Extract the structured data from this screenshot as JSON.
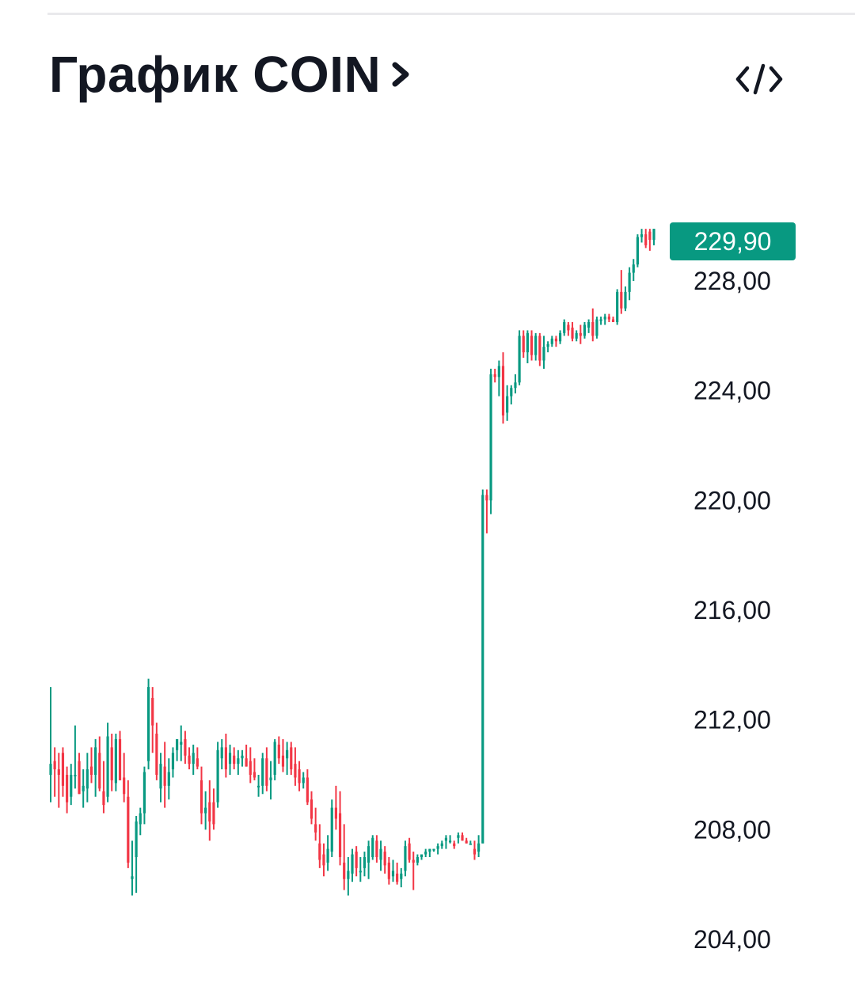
{
  "header": {
    "title": "График COIN",
    "chevron_icon": "chevron-right-icon",
    "embed_icon": "code-embed-icon"
  },
  "colors": {
    "up": "#089981",
    "down": "#f23645",
    "badge": "#089981",
    "divider": "#e9e9ec"
  },
  "chart_data": {
    "type": "candlestick",
    "title": "График COIN",
    "ylim": [
      204,
      234
    ],
    "y_ticks": [
      "228,00",
      "224,00",
      "220,00",
      "216,00",
      "212,00",
      "208,00",
      "204,00"
    ],
    "last_price_label": "229,90",
    "last_price": 229.9,
    "grid": false,
    "ohlc": [
      [
        210.0,
        213.2,
        209.0,
        210.4
      ],
      [
        210.5,
        211.0,
        209.2,
        210.2
      ],
      [
        210.2,
        210.8,
        208.8,
        210.0
      ],
      [
        210.8,
        211.0,
        209.2,
        209.6
      ],
      [
        210.0,
        210.3,
        208.6,
        209.0
      ],
      [
        209.2,
        210.4,
        208.9,
        210.0
      ],
      [
        210.0,
        211.8,
        209.5,
        210.0
      ],
      [
        210.5,
        210.8,
        209.3,
        209.3
      ],
      [
        209.4,
        210.2,
        208.8,
        209.6
      ],
      [
        209.5,
        210.8,
        209.0,
        210.2
      ],
      [
        210.3,
        211.0,
        209.7,
        210.0
      ],
      [
        210.0,
        211.3,
        209.2,
        211.0
      ],
      [
        210.8,
        211.4,
        209.4,
        209.5
      ],
      [
        209.4,
        210.5,
        208.6,
        208.9
      ],
      [
        209.2,
        211.9,
        209.0,
        211.4
      ],
      [
        211.0,
        211.5,
        209.4,
        209.8
      ],
      [
        209.7,
        211.5,
        209.4,
        211.3
      ],
      [
        211.3,
        211.6,
        209.8,
        209.8
      ],
      [
        209.9,
        210.8,
        209.0,
        209.3
      ],
      [
        209.2,
        209.8,
        206.6,
        206.8
      ],
      [
        206.2,
        207.6,
        205.6,
        206.3
      ],
      [
        207.0,
        208.5,
        205.7,
        208.3
      ],
      [
        208.2,
        208.8,
        207.8,
        208.6
      ],
      [
        208.6,
        210.3,
        208.2,
        210.1
      ],
      [
        210.5,
        213.5,
        210.2,
        213.2
      ],
      [
        212.8,
        213.2,
        210.8,
        211.8
      ],
      [
        211.5,
        211.9,
        209.8,
        210.0
      ],
      [
        209.5,
        210.8,
        209.0,
        210.4
      ],
      [
        210.3,
        211.2,
        208.8,
        209.6
      ],
      [
        209.6,
        210.6,
        209.1,
        210.1
      ],
      [
        210.2,
        211.0,
        209.9,
        210.8
      ],
      [
        210.9,
        211.3,
        210.5,
        211.3
      ],
      [
        211.1,
        211.8,
        210.5,
        211.2
      ],
      [
        211.3,
        211.6,
        210.4,
        210.7
      ],
      [
        210.7,
        211.0,
        210.2,
        210.4
      ],
      [
        210.4,
        211.1,
        210.0,
        210.8
      ],
      [
        210.6,
        211.0,
        210.2,
        210.3
      ],
      [
        209.8,
        210.3,
        208.2,
        208.6
      ],
      [
        208.6,
        209.4,
        208.0,
        208.8
      ],
      [
        209.0,
        209.8,
        207.6,
        208.3
      ],
      [
        209.0,
        209.5,
        208.0,
        208.2
      ],
      [
        209.0,
        211.2,
        208.8,
        210.9
      ],
      [
        210.6,
        211.3,
        210.2,
        211.0
      ],
      [
        211.0,
        211.5,
        209.9,
        210.2
      ],
      [
        210.4,
        211.1,
        210.0,
        210.8
      ],
      [
        210.7,
        211.0,
        210.2,
        210.4
      ],
      [
        210.4,
        210.9,
        210.0,
        210.6
      ],
      [
        210.6,
        210.9,
        210.3,
        210.7
      ],
      [
        210.6,
        211.1,
        210.3,
        210.3
      ],
      [
        210.5,
        211.0,
        209.7,
        210.0
      ],
      [
        210.1,
        210.6,
        209.8,
        209.9
      ],
      [
        209.6,
        210.0,
        209.2,
        209.6
      ],
      [
        209.6,
        210.8,
        209.3,
        210.6
      ],
      [
        210.6,
        211.0,
        209.4,
        209.6
      ],
      [
        209.8,
        210.5,
        209.1,
        209.9
      ],
      [
        210.0,
        211.3,
        209.8,
        211.2
      ],
      [
        211.1,
        211.4,
        210.4,
        210.6
      ],
      [
        210.7,
        211.3,
        210.1,
        210.3
      ],
      [
        210.6,
        211.2,
        210.0,
        210.9
      ],
      [
        211.0,
        211.2,
        210.0,
        210.2
      ],
      [
        210.4,
        211.0,
        209.6,
        209.9
      ],
      [
        210.2,
        210.5,
        209.4,
        209.7
      ],
      [
        209.7,
        210.1,
        209.5,
        209.9
      ],
      [
        209.9,
        210.2,
        208.9,
        209.0
      ],
      [
        209.1,
        209.4,
        208.2,
        208.4
      ],
      [
        208.2,
        208.8,
        207.6,
        207.9
      ],
      [
        207.5,
        208.2,
        206.6,
        206.9
      ],
      [
        207.1,
        207.5,
        206.3,
        206.7
      ],
      [
        206.8,
        207.8,
        206.5,
        207.3
      ],
      [
        207.2,
        209.1,
        207.0,
        208.8
      ],
      [
        208.8,
        209.6,
        208.0,
        208.4
      ],
      [
        208.6,
        209.4,
        206.7,
        207.0
      ],
      [
        206.8,
        208.2,
        205.8,
        206.2
      ],
      [
        206.2,
        207.0,
        205.6,
        206.5
      ],
      [
        206.4,
        207.3,
        206.1,
        207.1
      ],
      [
        207.2,
        207.4,
        206.3,
        206.6
      ],
      [
        206.5,
        207.0,
        206.1,
        206.5
      ],
      [
        206.6,
        207.2,
        206.3,
        207.0
      ],
      [
        206.8,
        207.6,
        206.2,
        207.4
      ],
      [
        207.0,
        207.8,
        206.9,
        207.7
      ],
      [
        207.6,
        207.8,
        206.8,
        207.0
      ],
      [
        206.9,
        207.6,
        206.5,
        207.3
      ],
      [
        207.2,
        207.4,
        206.4,
        206.7
      ],
      [
        206.8,
        207.0,
        206.0,
        206.2
      ],
      [
        206.3,
        206.9,
        206.1,
        206.5
      ],
      [
        206.4,
        206.8,
        206.0,
        206.1
      ],
      [
        206.2,
        206.6,
        205.9,
        206.4
      ],
      [
        206.5,
        207.6,
        206.3,
        207.4
      ],
      [
        207.5,
        207.7,
        206.8,
        206.9
      ],
      [
        206.9,
        207.2,
        205.8,
        206.8
      ],
      [
        206.8,
        207.1,
        206.7,
        207.0
      ],
      [
        207.0,
        207.1,
        206.9,
        207.1
      ],
      [
        207.1,
        207.3,
        207.0,
        207.2
      ],
      [
        207.2,
        207.3,
        207.0,
        207.3
      ],
      [
        207.3,
        207.3,
        207.2,
        207.3
      ],
      [
        207.3,
        207.5,
        207.1,
        207.4
      ],
      [
        207.4,
        207.6,
        207.3,
        207.5
      ],
      [
        207.6,
        207.8,
        207.3,
        207.7
      ],
      [
        207.6,
        207.8,
        207.5,
        207.6
      ],
      [
        207.5,
        207.6,
        207.3,
        207.4
      ],
      [
        207.7,
        207.9,
        207.5,
        207.8
      ],
      [
        207.8,
        207.9,
        207.6,
        207.6
      ],
      [
        207.6,
        207.7,
        207.5,
        207.5
      ],
      [
        207.5,
        207.6,
        207.5,
        207.5
      ],
      [
        207.3,
        207.6,
        206.9,
        207.1
      ],
      [
        207.2,
        207.8,
        207.0,
        207.5
      ],
      [
        207.5,
        220.4,
        207.5,
        220.2
      ],
      [
        220.2,
        220.4,
        218.8,
        220.0
      ],
      [
        220.0,
        224.8,
        219.5,
        224.6
      ],
      [
        224.6,
        224.8,
        224.3,
        224.5
      ],
      [
        224.5,
        225.1,
        223.8,
        224.9
      ],
      [
        224.9,
        225.4,
        222.8,
        223.1
      ],
      [
        223.2,
        224.2,
        222.9,
        223.8
      ],
      [
        223.8,
        224.2,
        223.5,
        224.1
      ],
      [
        224.1,
        224.6,
        223.9,
        224.3
      ],
      [
        224.3,
        226.2,
        224.2,
        226.0
      ],
      [
        226.0,
        226.2,
        225.2,
        225.4
      ],
      [
        225.4,
        226.2,
        225.0,
        226.1
      ],
      [
        226.0,
        226.2,
        225.1,
        225.3
      ],
      [
        225.3,
        226.1,
        225.1,
        226.0
      ],
      [
        226.0,
        226.1,
        224.9,
        225.1
      ],
      [
        225.1,
        226.0,
        224.8,
        225.6
      ],
      [
        225.6,
        225.8,
        225.4,
        225.7
      ],
      [
        225.7,
        226.0,
        225.6,
        225.9
      ],
      [
        225.9,
        226.0,
        225.6,
        225.8
      ],
      [
        225.8,
        226.2,
        225.7,
        226.1
      ],
      [
        226.1,
        226.6,
        226.0,
        226.5
      ],
      [
        226.4,
        226.5,
        226.0,
        226.2
      ],
      [
        226.3,
        226.5,
        225.8,
        225.9
      ],
      [
        225.9,
        226.2,
        225.8,
        226.1
      ],
      [
        226.1,
        226.4,
        225.7,
        226.0
      ],
      [
        226.0,
        226.5,
        225.9,
        226.4
      ],
      [
        226.3,
        226.6,
        226.1,
        226.5
      ],
      [
        226.5,
        227.0,
        225.8,
        226.0
      ],
      [
        226.0,
        226.7,
        225.9,
        226.6
      ],
      [
        226.6,
        226.7,
        226.4,
        226.6
      ],
      [
        226.6,
        226.8,
        226.4,
        226.7
      ],
      [
        226.7,
        226.8,
        226.5,
        226.6
      ],
      [
        226.6,
        226.7,
        226.5,
        226.5
      ],
      [
        226.5,
        227.7,
        226.4,
        227.6
      ],
      [
        227.6,
        228.4,
        226.8,
        227.0
      ],
      [
        227.0,
        227.8,
        226.9,
        227.6
      ],
      [
        227.6,
        228.5,
        227.3,
        228.3
      ],
      [
        228.3,
        228.8,
        228.0,
        228.6
      ],
      [
        228.6,
        229.7,
        228.5,
        229.6
      ],
      [
        229.6,
        229.9,
        229.4,
        229.7
      ],
      [
        229.7,
        229.9,
        229.2,
        229.3
      ],
      [
        229.8,
        229.9,
        229.1,
        229.5
      ],
      [
        229.5,
        229.9,
        229.3,
        229.9
      ]
    ]
  }
}
